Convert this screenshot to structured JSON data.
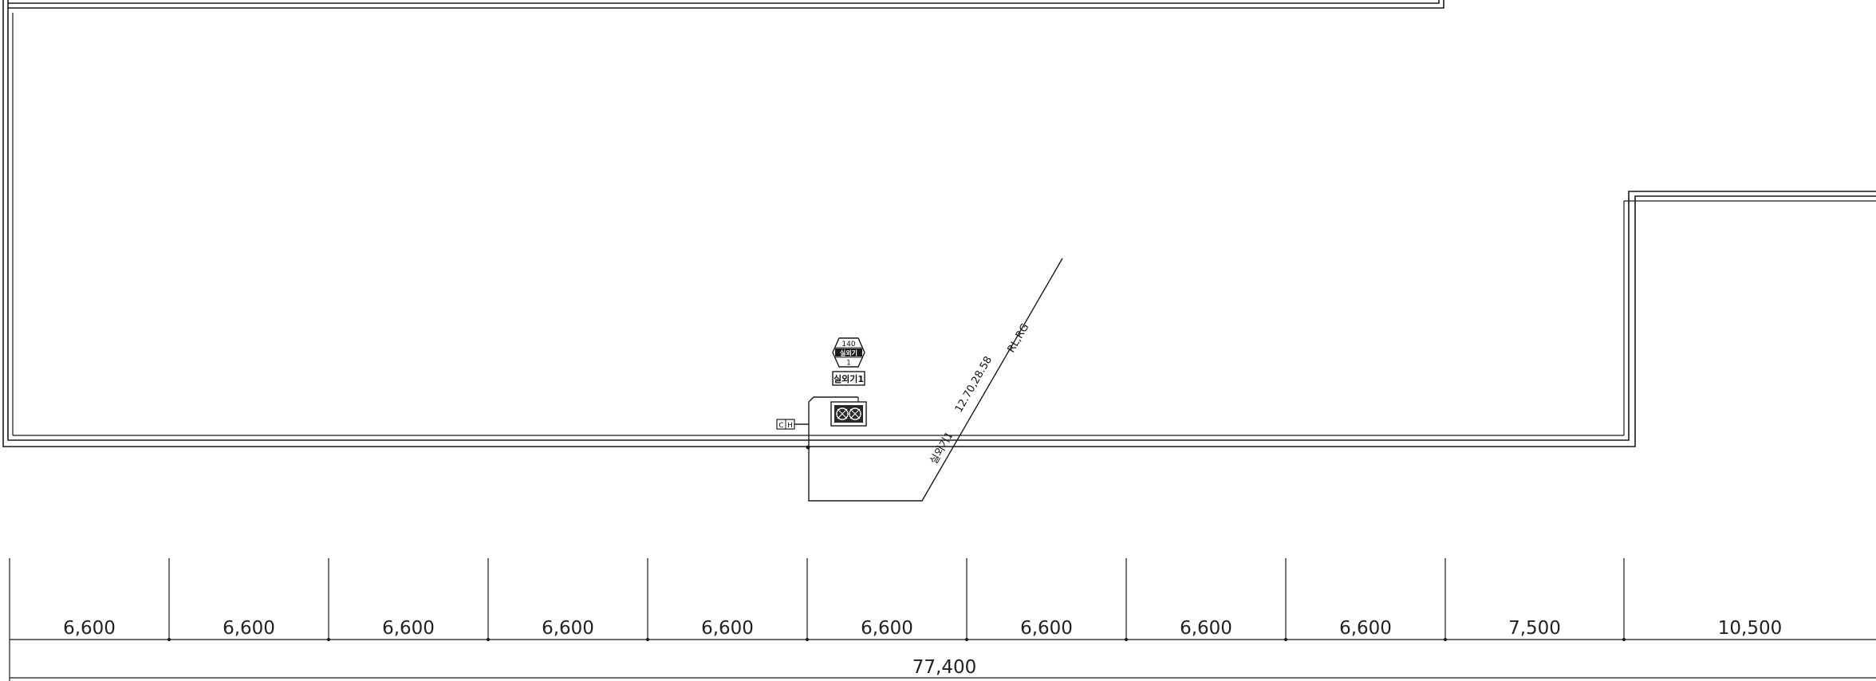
{
  "drawing": {
    "unit_label": "실외기1",
    "unit_tag_number": "140",
    "unit_tag_type": "실외기",
    "unit_tag_index": "1",
    "pipe_label": "12.70,28.58",
    "pipe_spec": "RL,RG",
    "pipe_unit_label": "실외기1",
    "control_box_label_left": "C",
    "control_box_label_right": "H"
  },
  "dimensions": {
    "spans": [
      "6,600",
      "6,600",
      "6,600",
      "6,600",
      "6,600",
      "6,600",
      "6,600",
      "6,600",
      "6,600",
      "7,500",
      "10,500"
    ],
    "total": "77,400"
  }
}
